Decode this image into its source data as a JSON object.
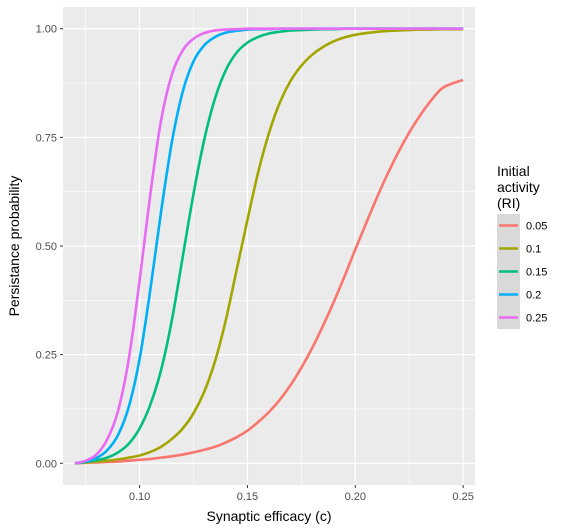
{
  "chart_data": {
    "type": "line",
    "xlabel": "Synaptic efficacy (c)",
    "ylabel": "Persistance probability",
    "xlim": [
      0.0645,
      0.2555
    ],
    "ylim": [
      -0.05,
      1.05
    ],
    "x_ticks": [
      0.1,
      0.15,
      0.2,
      0.25
    ],
    "x_tick_labels": [
      "0.10",
      "0.15",
      "0.20",
      "0.25"
    ],
    "y_ticks": [
      0.0,
      0.25,
      0.5,
      0.75,
      1.0
    ],
    "y_tick_labels": [
      "0.00",
      "0.25",
      "0.50",
      "0.75",
      "1.00"
    ],
    "grid": true,
    "background": "#ebebeb",
    "legend": {
      "title_lines": [
        "Initial",
        "activity",
        "(RI)"
      ],
      "placement": "right"
    },
    "x": [
      0.07,
      0.075,
      0.08,
      0.085,
      0.09,
      0.095,
      0.1,
      0.105,
      0.11,
      0.115,
      0.12,
      0.125,
      0.13,
      0.135,
      0.14,
      0.145,
      0.15,
      0.155,
      0.16,
      0.165,
      0.17,
      0.175,
      0.18,
      0.185,
      0.19,
      0.195,
      0.2,
      0.205,
      0.21,
      0.215,
      0.22,
      0.225,
      0.23,
      0.235,
      0.24,
      0.245,
      0.25
    ],
    "series": [
      {
        "name": "0.05",
        "color": "#F8766D",
        "values": [
          0.0,
          0.001,
          0.002,
          0.003,
          0.004,
          0.006,
          0.008,
          0.01,
          0.013,
          0.016,
          0.02,
          0.025,
          0.031,
          0.038,
          0.048,
          0.06,
          0.075,
          0.095,
          0.118,
          0.146,
          0.18,
          0.22,
          0.265,
          0.316,
          0.371,
          0.43,
          0.492,
          0.552,
          0.611,
          0.666,
          0.716,
          0.761,
          0.8,
          0.834,
          0.862,
          0.874,
          0.882
        ]
      },
      {
        "name": "0.1",
        "color": "#A3A500",
        "values": [
          0.0,
          0.002,
          0.004,
          0.006,
          0.009,
          0.013,
          0.018,
          0.026,
          0.038,
          0.056,
          0.08,
          0.115,
          0.165,
          0.235,
          0.33,
          0.445,
          0.56,
          0.67,
          0.76,
          0.83,
          0.88,
          0.915,
          0.94,
          0.958,
          0.971,
          0.98,
          0.986,
          0.99,
          0.993,
          0.995,
          0.996,
          0.997,
          0.998,
          0.998,
          0.999,
          0.999,
          0.999
        ]
      },
      {
        "name": "0.15",
        "color": "#00BF7D",
        "values": [
          0.0,
          0.003,
          0.007,
          0.013,
          0.025,
          0.045,
          0.08,
          0.135,
          0.215,
          0.33,
          0.475,
          0.62,
          0.745,
          0.84,
          0.905,
          0.945,
          0.968,
          0.981,
          0.989,
          0.993,
          0.996,
          0.997,
          0.998,
          0.999,
          0.999,
          1.0,
          1.0,
          1.0,
          1.0,
          1.0,
          1.0,
          1.0,
          1.0,
          1.0,
          1.0,
          1.0,
          1.0
        ]
      },
      {
        "name": "0.2",
        "color": "#00B0F6",
        "values": [
          0.0,
          0.004,
          0.012,
          0.03,
          0.065,
          0.13,
          0.24,
          0.4,
          0.58,
          0.74,
          0.855,
          0.925,
          0.962,
          0.981,
          0.991,
          0.995,
          0.998,
          0.999,
          0.999,
          1.0,
          1.0,
          1.0,
          1.0,
          1.0,
          1.0,
          1.0,
          1.0,
          1.0,
          1.0,
          1.0,
          1.0,
          1.0,
          1.0,
          1.0,
          1.0,
          1.0,
          1.0
        ]
      },
      {
        "name": "0.25",
        "color": "#E76BF3",
        "values": [
          0.0,
          0.006,
          0.02,
          0.055,
          0.12,
          0.24,
          0.42,
          0.62,
          0.79,
          0.895,
          0.95,
          0.977,
          0.99,
          0.996,
          0.998,
          0.999,
          1.0,
          1.0,
          1.0,
          1.0,
          1.0,
          1.0,
          1.0,
          1.0,
          1.0,
          1.0,
          1.0,
          1.0,
          1.0,
          1.0,
          1.0,
          1.0,
          1.0,
          1.0,
          1.0,
          1.0,
          1.0
        ]
      }
    ]
  }
}
